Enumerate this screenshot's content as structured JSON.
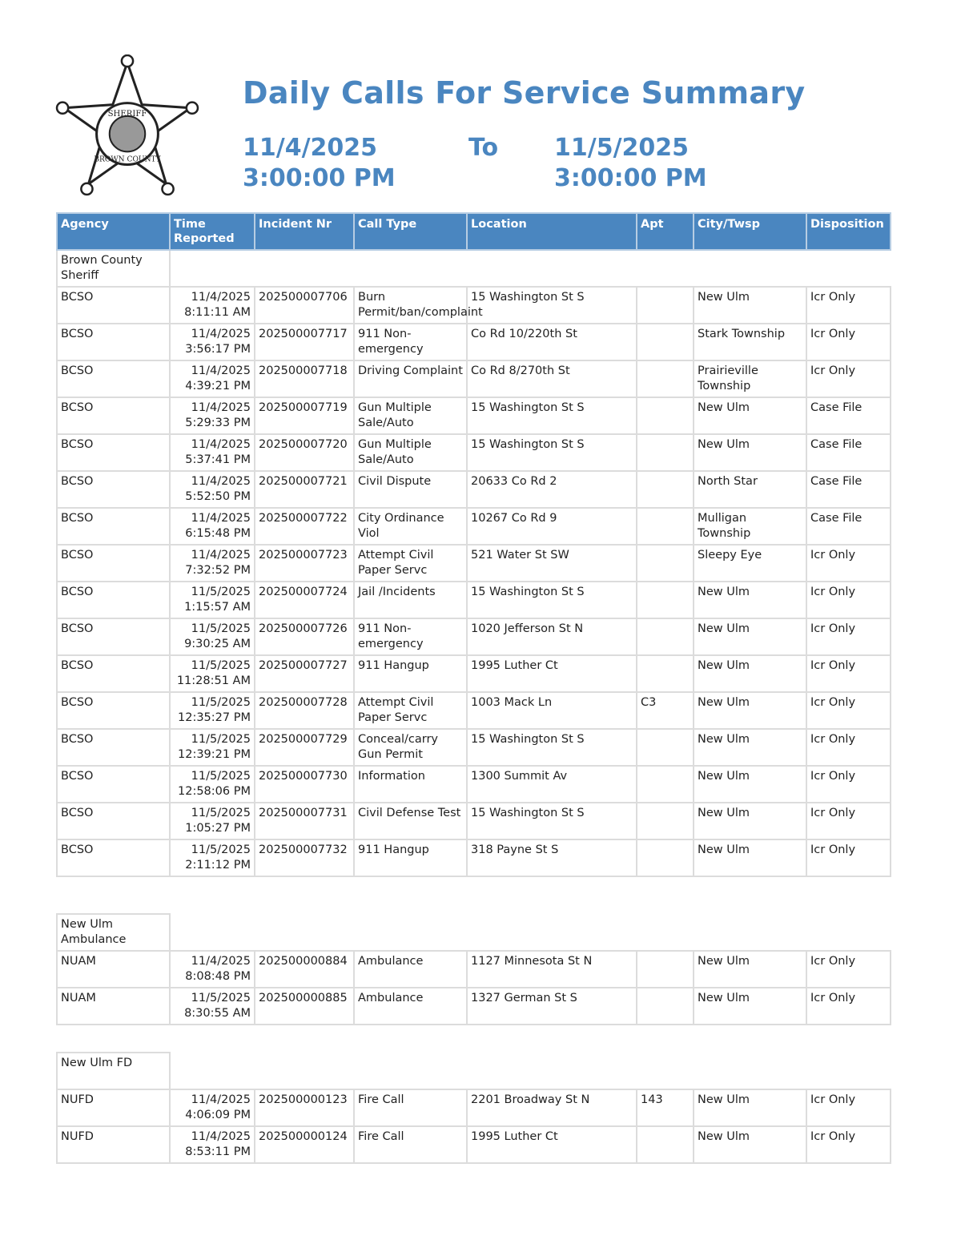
{
  "header": {
    "logo_text": "SHERIFF BROWN COUNTY",
    "title": "Daily Calls For Service Summary",
    "from_date": "11/4/2025",
    "from_time": "3:00:00 PM",
    "to_label": "To",
    "to_date": "11/5/2025",
    "to_time": "3:00:00 PM",
    "accent_color": "#4a86c0"
  },
  "columns": [
    "Agency",
    "Time Reported",
    "Incident Nr",
    "Call Type",
    "Location",
    "Apt",
    "City/Twsp",
    "Disposition"
  ],
  "groups": [
    {
      "name": "Brown County Sheriff",
      "rows": [
        [
          "BCSO",
          "11/4/2025 8:11:11 AM",
          "202500007706",
          "Burn Permit/ban/complaint",
          "15 Washington St S",
          "",
          "New Ulm",
          "Icr Only"
        ],
        [
          "BCSO",
          "11/4/2025 3:56:17 PM",
          "202500007717",
          "911 Non-emergency",
          "Co Rd 10/220th St",
          "",
          "Stark Township",
          "Icr Only"
        ],
        [
          "BCSO",
          "11/4/2025 4:39:21 PM",
          "202500007718",
          "Driving Complaint",
          "Co Rd 8/270th St",
          "",
          "Prairieville Township",
          "Icr Only"
        ],
        [
          "BCSO",
          "11/4/2025 5:29:33 PM",
          "202500007719",
          "Gun Multiple Sale/Auto",
          "15 Washington St S",
          "",
          "New Ulm",
          "Case File"
        ],
        [
          "BCSO",
          "11/4/2025 5:37:41 PM",
          "202500007720",
          "Gun Multiple Sale/Auto",
          "15 Washington St S",
          "",
          "New Ulm",
          "Case File"
        ],
        [
          "BCSO",
          "11/4/2025 5:52:50 PM",
          "202500007721",
          "Civil Dispute",
          "20633 Co Rd 2",
          "",
          "North Star",
          "Case File"
        ],
        [
          "BCSO",
          "11/4/2025 6:15:48 PM",
          "202500007722",
          "City Ordinance Viol",
          "10267 Co Rd 9",
          "",
          "Mulligan Township",
          "Case File"
        ],
        [
          "BCSO",
          "11/4/2025 7:32:52 PM",
          "202500007723",
          "Attempt Civil Paper Servc",
          "521 Water St SW",
          "",
          "Sleepy Eye",
          "Icr Only"
        ],
        [
          "BCSO",
          "11/5/2025 1:15:57 AM",
          "202500007724",
          "Jail /Incidents",
          "15 Washington St S",
          "",
          "New Ulm",
          "Icr Only"
        ],
        [
          "BCSO",
          "11/5/2025 9:30:25 AM",
          "202500007726",
          "911 Non-emergency",
          "1020 Jefferson St N",
          "",
          "New Ulm",
          "Icr Only"
        ],
        [
          "BCSO",
          "11/5/2025 11:28:51 AM",
          "202500007727",
          "911 Hangup",
          "1995 Luther Ct",
          "",
          "New Ulm",
          "Icr Only"
        ],
        [
          "BCSO",
          "11/5/2025 12:35:27 PM",
          "202500007728",
          "Attempt Civil Paper Servc",
          "1003 Mack Ln",
          "C3",
          "New Ulm",
          "Icr Only"
        ],
        [
          "BCSO",
          "11/5/2025 12:39:21 PM",
          "202500007729",
          "Conceal/carry Gun Permit",
          "15 Washington St S",
          "",
          "New Ulm",
          "Icr Only"
        ],
        [
          "BCSO",
          "11/5/2025 12:58:06 PM",
          "202500007730",
          "Information",
          "1300 Summit Av",
          "",
          "New Ulm",
          "Icr Only"
        ],
        [
          "BCSO",
          "11/5/2025 1:05:27 PM",
          "202500007731",
          "Civil Defense Test",
          "15 Washington St S",
          "",
          "New Ulm",
          "Icr Only"
        ],
        [
          "BCSO",
          "11/5/2025 2:11:12 PM",
          "202500007732",
          "911 Hangup",
          "318 Payne St S",
          "",
          "New Ulm",
          "Icr Only"
        ]
      ]
    },
    {
      "name": "New Ulm Ambulance",
      "rows": [
        [
          "NUAM",
          "11/4/2025 8:08:48 PM",
          "202500000884",
          "Ambulance",
          "1127 Minnesota St N",
          "",
          "New Ulm",
          "Icr Only"
        ],
        [
          "NUAM",
          "11/5/2025 8:30:55 AM",
          "202500000885",
          "Ambulance",
          "1327 German St S",
          "",
          "New Ulm",
          "Icr Only"
        ]
      ]
    },
    {
      "name": "New Ulm FD",
      "rows": [
        [
          "NUFD",
          "11/4/2025 4:06:09 PM",
          "202500000123",
          "Fire Call",
          "2201 Broadway St N",
          "143",
          "New Ulm",
          "Icr Only"
        ],
        [
          "NUFD",
          "11/4/2025 8:53:11 PM",
          "202500000124",
          "Fire Call",
          "1995 Luther Ct",
          "",
          "New Ulm",
          "Icr Only"
        ]
      ]
    }
  ]
}
